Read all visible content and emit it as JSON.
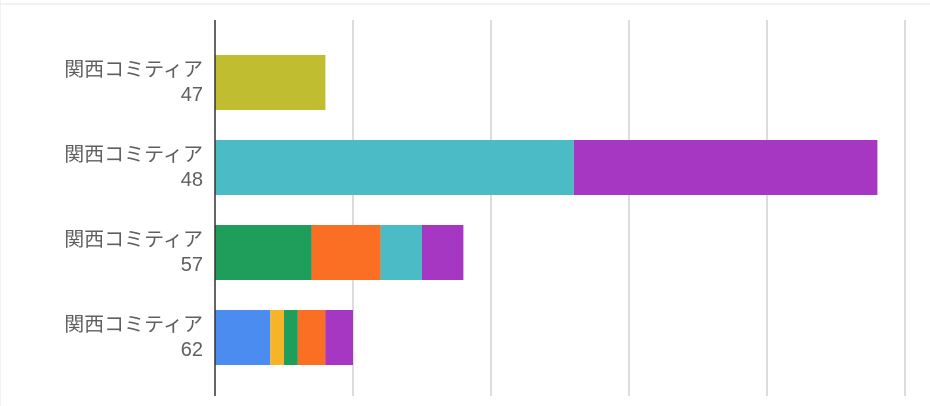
{
  "chart_data": {
    "type": "stacked-barh",
    "categories": [
      [
        "関西コミティア",
        "47"
      ],
      [
        "関西コミティア",
        "48"
      ],
      [
        "関西コミティア",
        "57"
      ],
      [
        "関西コミティア",
        "62"
      ]
    ],
    "series": [
      {
        "color": "#4a8cf0",
        "values": [
          null,
          null,
          null,
          0.4
        ]
      },
      {
        "color": "#f5b42a",
        "values": [
          null,
          null,
          null,
          0.1
        ]
      },
      {
        "color": "#1e9e5a",
        "values": [
          null,
          null,
          0.7,
          0.1
        ]
      },
      {
        "color": "#fb6f24",
        "values": [
          null,
          null,
          0.5,
          0.2
        ]
      },
      {
        "color": "#4bbcc6",
        "values": [
          null,
          2.6,
          0.3,
          null
        ]
      },
      {
        "color": "#a537c3",
        "values": [
          null,
          2.2,
          0.3,
          0.2
        ]
      },
      {
        "color": "#c1bd30",
        "values": [
          0.8,
          null,
          null,
          null
        ]
      }
    ],
    "xlim": [
      0,
      5
    ],
    "xticks": [
      0,
      1,
      2,
      3,
      4,
      5
    ],
    "grid": true
  }
}
